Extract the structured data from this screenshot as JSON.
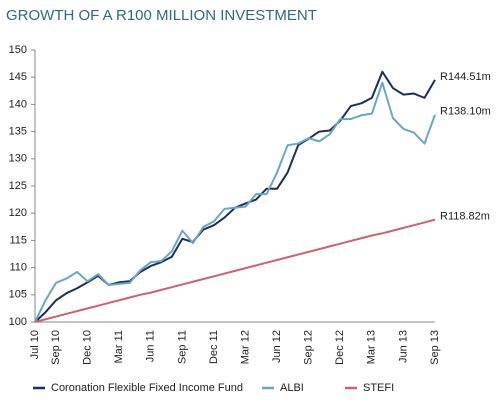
{
  "chart_data": {
    "type": "line",
    "title": "GROWTH OF A R100 MILLION INVESTMENT",
    "categories": [
      "Jul 10",
      null,
      "Sep 10",
      null,
      null,
      "Dec 10",
      null,
      null,
      "Mar 11",
      null,
      null,
      "Jun 11",
      null,
      null,
      "Sep 11",
      null,
      null,
      "Dec 11",
      null,
      null,
      "Mar 12",
      null,
      null,
      "Jun 12",
      null,
      null,
      "Sep 12",
      null,
      null,
      "Dec 12",
      null,
      null,
      "Mar 13",
      null,
      null,
      "Jun 13",
      null,
      null,
      "Sep 13"
    ],
    "series": [
      {
        "name": "Coronation Flexible Fixed Income Fund",
        "color": "#1b2f5c",
        "values": [
          100,
          101.8,
          104,
          105.3,
          106.2,
          107.3,
          108.5,
          106.8,
          107.3,
          107.5,
          109.2,
          110.3,
          111,
          112,
          115.3,
          114.7,
          117,
          117.8,
          119.2,
          121,
          121.8,
          122.5,
          124.5,
          124.5,
          127.5,
          132.5,
          133.7,
          135,
          135.2,
          137,
          139.7,
          140.2,
          141.2,
          146,
          143,
          141.8,
          142,
          141.2,
          144.51
        ],
        "value_labels": [
          null,
          null,
          null,
          null,
          null,
          null,
          null,
          null,
          null,
          null,
          null,
          null,
          null,
          null,
          null,
          null,
          null,
          null,
          null,
          null,
          null,
          null,
          null,
          null,
          null,
          null,
          null,
          null,
          null,
          null,
          null,
          null,
          null,
          null,
          null,
          null,
          null,
          null,
          "R144.51m"
        ]
      },
      {
        "name": "ALBI",
        "color": "#6aa6c6",
        "values": [
          100,
          104,
          107.2,
          108,
          109.2,
          107.5,
          108.8,
          106.8,
          107,
          107.2,
          109.5,
          111,
          111.2,
          113,
          116.8,
          114.5,
          117.5,
          118.5,
          120.8,
          121,
          121.2,
          123.5,
          123.5,
          127.5,
          132.5,
          132.8,
          133.8,
          133.2,
          134.5,
          137.3,
          137.3,
          138,
          138.3,
          144,
          137.5,
          135.5,
          134.8,
          132.8,
          138.1
        ],
        "value_labels": [
          null,
          null,
          null,
          null,
          null,
          null,
          null,
          null,
          null,
          null,
          null,
          null,
          null,
          null,
          null,
          null,
          null,
          null,
          null,
          null,
          null,
          null,
          null,
          null,
          null,
          null,
          null,
          null,
          null,
          null,
          null,
          null,
          null,
          null,
          null,
          null,
          null,
          null,
          "R138.10m"
        ]
      },
      {
        "name": "STEFI",
        "color": "#d0606e",
        "values": [
          100,
          100.5,
          101,
          101.5,
          102,
          102.5,
          103,
          103.5,
          104,
          104.5,
          105,
          105.4,
          105.9,
          106.4,
          106.9,
          107.4,
          107.9,
          108.4,
          108.9,
          109.4,
          109.9,
          110.4,
          110.9,
          111.4,
          111.9,
          112.4,
          112.9,
          113.4,
          113.9,
          114.4,
          114.9,
          115.4,
          115.9,
          116.3,
          116.8,
          117.3,
          117.8,
          118.3,
          118.82
        ],
        "value_labels": [
          null,
          null,
          null,
          null,
          null,
          null,
          null,
          null,
          null,
          null,
          null,
          null,
          null,
          null,
          null,
          null,
          null,
          null,
          null,
          null,
          null,
          null,
          null,
          null,
          null,
          null,
          null,
          null,
          null,
          null,
          null,
          null,
          null,
          null,
          null,
          null,
          null,
          null,
          "R118.82m"
        ]
      }
    ],
    "ylim": [
      100,
      150
    ],
    "yticks": [
      100,
      105,
      110,
      115,
      120,
      125,
      130,
      135,
      140,
      145,
      150
    ],
    "grid": false,
    "legend": "bottom"
  }
}
